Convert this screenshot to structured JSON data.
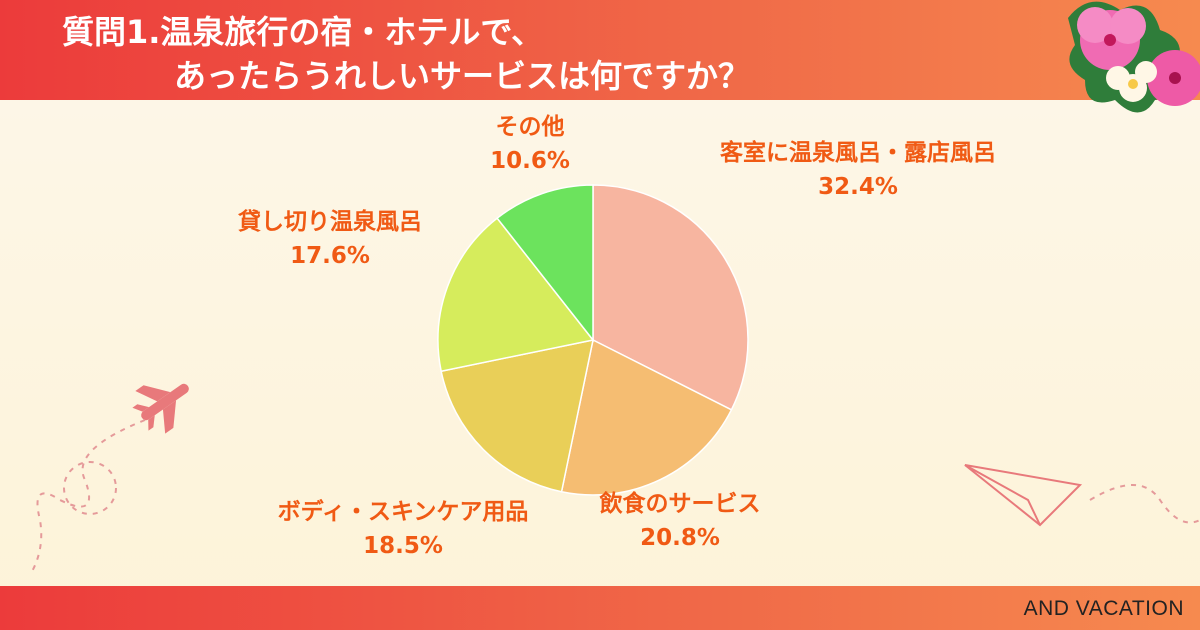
{
  "header": {
    "title_line1": "質問1.温泉旅行の宿・ホテルで、",
    "title_line2": "あったらうれしいサービスは何ですか？"
  },
  "footer": {
    "brand": "AND VACATION"
  },
  "colors": {
    "label": "#f05a14",
    "header": "#ec3b3b"
  },
  "chart_data": {
    "type": "pie",
    "start_angle": "12 o'clock, clockwise",
    "slices": [
      {
        "label": "客室に温泉風呂・露店風呂",
        "value": 32.4,
        "display": "32.4%",
        "color": "#f7b5a0"
      },
      {
        "label": "飲食のサービス",
        "value": 20.8,
        "display": "20.8%",
        "color": "#f5bd72"
      },
      {
        "label": "ボディ・スキンケア用品",
        "value": 18.5,
        "display": "18.5%",
        "color": "#e9cf58"
      },
      {
        "label": "貸し切り温泉風呂",
        "value": 17.6,
        "display": "17.6%",
        "color": "#d6ec5c"
      },
      {
        "label": "その他",
        "value": 10.6,
        "display": "10.6%",
        "color": "#6ce35d"
      }
    ]
  }
}
